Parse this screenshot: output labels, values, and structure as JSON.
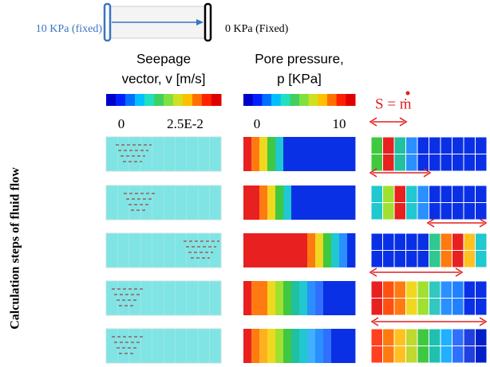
{
  "boundary": {
    "left": "10 KPa (fixed)",
    "right": "0 KPa (Fixed)"
  },
  "columns": [
    {
      "title": [
        "Seepage",
        "vector, v [m/s]"
      ],
      "scale": [
        "0",
        "2.5E-2"
      ]
    },
    {
      "title": [
        "Pore pressure,",
        "p [KPa]"
      ],
      "scale": [
        "0",
        "10"
      ]
    },
    {
      "title": [
        "S = ṁ"
      ]
    }
  ],
  "side_label": "Calculation steps of fluid flow"
}
